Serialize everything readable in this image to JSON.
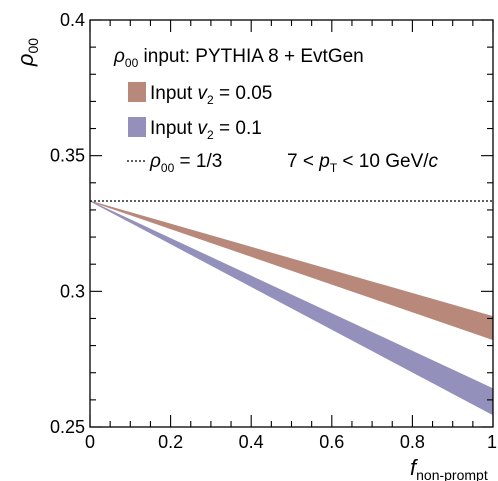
{
  "chart_data": {
    "type": "area",
    "ylabel": {
      "main": "ρ",
      "sub": "00"
    },
    "xlabel": {
      "main": "f",
      "sub": "non-prompt"
    },
    "xlim": [
      0,
      1
    ],
    "ylim": [
      0.25,
      0.4
    ],
    "x_ticks": [
      {
        "value": 0,
        "label": "0"
      },
      {
        "value": 0.2,
        "label": "0.2"
      },
      {
        "value": 0.4,
        "label": "0.4"
      },
      {
        "value": 0.6,
        "label": "0.6"
      },
      {
        "value": 0.8,
        "label": "0.8"
      },
      {
        "value": 1,
        "label": "1"
      }
    ],
    "y_ticks": [
      {
        "value": 0.25,
        "label": "0.25"
      },
      {
        "value": 0.3,
        "label": "0.3"
      },
      {
        "value": 0.35,
        "label": "0.35"
      },
      {
        "value": 0.4,
        "label": "0.4"
      }
    ],
    "reference_line": {
      "y": 0.3333,
      "style": "dotted"
    },
    "series": [
      {
        "name": "Input v2 = 0.05",
        "color": "#b8887a",
        "x": [
          0,
          1
        ],
        "lower": [
          0.3333,
          0.2822
        ],
        "upper": [
          0.3333,
          0.2907
        ]
      },
      {
        "name": "Input v2 = 0.1",
        "color": "#9490bc",
        "x": [
          0,
          1
        ],
        "lower": [
          0.3333,
          0.2545
        ],
        "upper": [
          0.3333,
          0.2641
        ]
      }
    ],
    "legend": {
      "header": {
        "rho": "ρ",
        "rho_sub": "00",
        "text": " input: PYTHIA 8 + EvtGen"
      },
      "entries": [
        {
          "prefix": "Input ",
          "var": "v",
          "sub": "2",
          "suffix": " = 0.05"
        },
        {
          "prefix": "Input ",
          "var": "v",
          "sub": "2",
          "suffix": " = 0.1"
        }
      ],
      "line_entry": {
        "rho": "ρ",
        "rho_sub": "00",
        "text": " = 1/3"
      },
      "pt_range": {
        "pre": "7 < ",
        "p": "p",
        "p_sub": "T",
        "post": " < 10 GeV/",
        "c": "c"
      }
    }
  }
}
